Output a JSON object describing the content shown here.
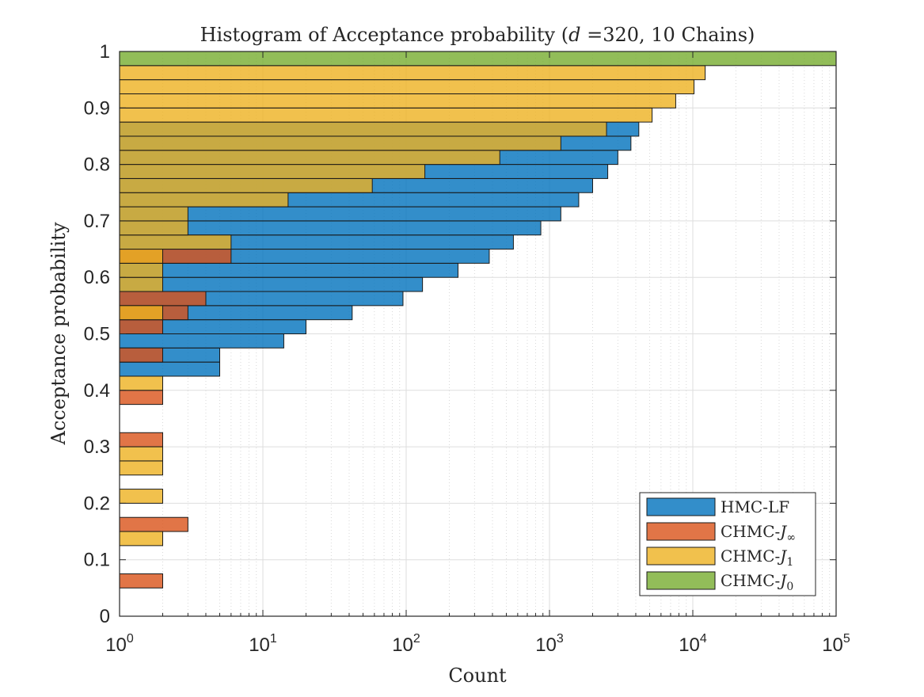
{
  "chart_data": {
    "type": "bar",
    "orientation": "horizontal",
    "title": "Histogram of Acceptance probability (d =320, 10 Chains)",
    "title_parts": [
      "Histogram of Acceptance probability (",
      "d",
      " =320, 10 Chains)"
    ],
    "xlabel": "Count",
    "ylabel": "Acceptance probability",
    "xscale": "log",
    "xlim": [
      1,
      100000
    ],
    "ylim": [
      0,
      1
    ],
    "x_ticks": [
      {
        "base": "10",
        "exp": "0",
        "value": 1
      },
      {
        "base": "10",
        "exp": "1",
        "value": 10
      },
      {
        "base": "10",
        "exp": "2",
        "value": 100
      },
      {
        "base": "10",
        "exp": "3",
        "value": 1000
      },
      {
        "base": "10",
        "exp": "4",
        "value": 10000
      },
      {
        "base": "10",
        "exp": "5",
        "value": 100000
      }
    ],
    "y_ticks": [
      {
        "label": "0",
        "value": 0
      },
      {
        "label": "0.1",
        "value": 0.1
      },
      {
        "label": "0.2",
        "value": 0.2
      },
      {
        "label": "0.3",
        "value": 0.3
      },
      {
        "label": "0.4",
        "value": 0.4
      },
      {
        "label": "0.5",
        "value": 0.5
      },
      {
        "label": "0.6",
        "value": 0.6
      },
      {
        "label": "0.7",
        "value": 0.7
      },
      {
        "label": "0.8",
        "value": 0.8
      },
      {
        "label": "0.9",
        "value": 0.9
      },
      {
        "label": "1",
        "value": 1
      }
    ],
    "bin_width": 0.025,
    "grid": true,
    "legend_position": "bottom-right",
    "series": [
      {
        "name": "HMC-LF",
        "legend_text": "HMC-LF",
        "legend_sub": "",
        "color": "#0072BD",
        "bins": [
          {
            "y": 0.4375,
            "count": 5
          },
          {
            "y": 0.4625,
            "count": 5
          },
          {
            "y": 0.4875,
            "count": 14
          },
          {
            "y": 0.5125,
            "count": 20
          },
          {
            "y": 0.5375,
            "count": 42
          },
          {
            "y": 0.5625,
            "count": 95
          },
          {
            "y": 0.5875,
            "count": 130
          },
          {
            "y": 0.6125,
            "count": 230
          },
          {
            "y": 0.6375,
            "count": 380
          },
          {
            "y": 0.6625,
            "count": 560
          },
          {
            "y": 0.6875,
            "count": 870
          },
          {
            "y": 0.7125,
            "count": 1200
          },
          {
            "y": 0.7375,
            "count": 1600
          },
          {
            "y": 0.7625,
            "count": 2000
          },
          {
            "y": 0.7875,
            "count": 2550
          },
          {
            "y": 0.8125,
            "count": 3000
          },
          {
            "y": 0.8375,
            "count": 3700
          },
          {
            "y": 0.8625,
            "count": 4200
          }
        ]
      },
      {
        "name": "CHMC-J∞",
        "legend_text": "CHMC-J",
        "legend_sub": "∞",
        "color": "#D95319",
        "bins": [
          {
            "y": 0.0625,
            "count": 2
          },
          {
            "y": 0.1625,
            "count": 3
          },
          {
            "y": 0.3125,
            "count": 2
          },
          {
            "y": 0.3875,
            "count": 2
          },
          {
            "y": 0.4625,
            "count": 2
          },
          {
            "y": 0.5125,
            "count": 2
          },
          {
            "y": 0.5375,
            "count": 3
          },
          {
            "y": 0.5625,
            "count": 4
          },
          {
            "y": 0.6375,
            "count": 6
          }
        ]
      },
      {
        "name": "CHMC-J1",
        "legend_text": "CHMC-J",
        "legend_sub": "1",
        "color": "#EDB120",
        "bins": [
          {
            "y": 0.1375,
            "count": 2
          },
          {
            "y": 0.2125,
            "count": 2
          },
          {
            "y": 0.2625,
            "count": 2
          },
          {
            "y": 0.2875,
            "count": 2
          },
          {
            "y": 0.4125,
            "count": 2
          },
          {
            "y": 0.5375,
            "count": 2
          },
          {
            "y": 0.5875,
            "count": 2
          },
          {
            "y": 0.6125,
            "count": 2
          },
          {
            "y": 0.6375,
            "count": 2
          },
          {
            "y": 0.6625,
            "count": 6
          },
          {
            "y": 0.6875,
            "count": 3
          },
          {
            "y": 0.7125,
            "count": 3
          },
          {
            "y": 0.7375,
            "count": 15
          },
          {
            "y": 0.7625,
            "count": 58
          },
          {
            "y": 0.7875,
            "count": 135
          },
          {
            "y": 0.8125,
            "count": 450
          },
          {
            "y": 0.8375,
            "count": 1200
          },
          {
            "y": 0.8625,
            "count": 2500
          },
          {
            "y": 0.8875,
            "count": 5200
          },
          {
            "y": 0.9125,
            "count": 7600
          },
          {
            "y": 0.9375,
            "count": 10200
          },
          {
            "y": 0.9625,
            "count": 12200
          }
        ]
      },
      {
        "name": "CHMC-J0",
        "legend_text": "CHMC-J",
        "legend_sub": "0",
        "color": "#77AC30",
        "bins": [
          {
            "y": 0.9875,
            "count": 100000
          }
        ]
      }
    ]
  }
}
